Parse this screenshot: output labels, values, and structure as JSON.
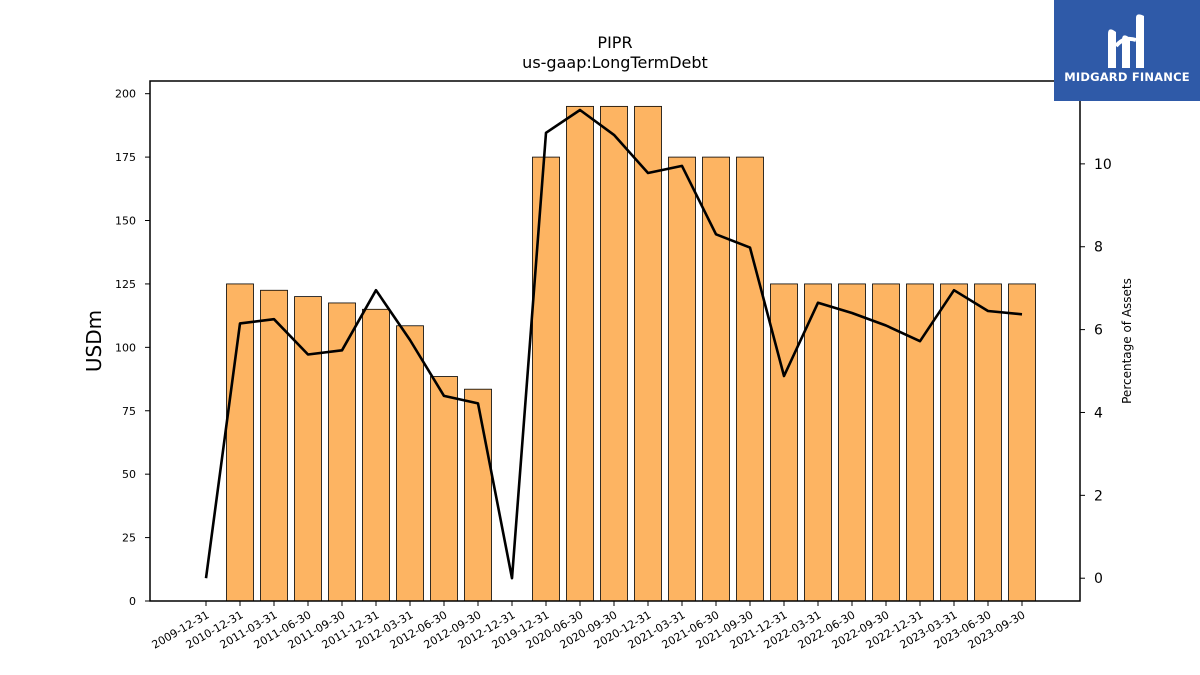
{
  "chart_data": {
    "type": "bar",
    "title": "PIPR",
    "subtitle": "us-gaap:LongTermDebt",
    "ylabel": "USDm",
    "y2label": "Percentage of Assets",
    "ylim": [
      0,
      205
    ],
    "y2lim": [
      -0.55,
      12.0
    ],
    "yticks": [
      0,
      25,
      50,
      75,
      100,
      125,
      150,
      175,
      200
    ],
    "y2ticks": [
      0,
      2,
      4,
      6,
      8,
      10
    ],
    "categories": [
      "2009-12-31",
      "2010-12-31",
      "2011-03-31",
      "2011-06-30",
      "2011-09-30",
      "2011-12-31",
      "2012-03-31",
      "2012-06-30",
      "2012-09-30",
      "2012-12-31",
      "2019-12-31",
      "2020-06-30",
      "2020-09-30",
      "2020-12-31",
      "2021-03-31",
      "2021-06-30",
      "2021-09-30",
      "2021-12-31",
      "2022-03-31",
      "2022-06-30",
      "2022-09-30",
      "2022-12-31",
      "2023-03-31",
      "2023-06-30",
      "2023-09-30"
    ],
    "series": [
      {
        "kind": "bar",
        "color": "#fdb462",
        "values": [
          0,
          125,
          122.5,
          120,
          117.5,
          115,
          108.5,
          88.5,
          83.5,
          0,
          175,
          195,
          195,
          195,
          175,
          175,
          175,
          125,
          125,
          125,
          125,
          125,
          125,
          125,
          125
        ]
      },
      {
        "kind": "line",
        "color": "#000000",
        "axis": "right",
        "values": [
          0,
          6.15,
          6.25,
          5.4,
          5.5,
          6.95,
          5.75,
          4.4,
          4.22,
          0,
          10.75,
          11.3,
          10.7,
          9.78,
          9.95,
          8.3,
          7.98,
          4.88,
          6.65,
          6.4,
          6.1,
          5.72,
          6.95,
          6.45,
          6.37
        ]
      }
    ]
  },
  "logo": {
    "text": "MIDGARD FINANCE",
    "background": "#2f5aa8"
  }
}
